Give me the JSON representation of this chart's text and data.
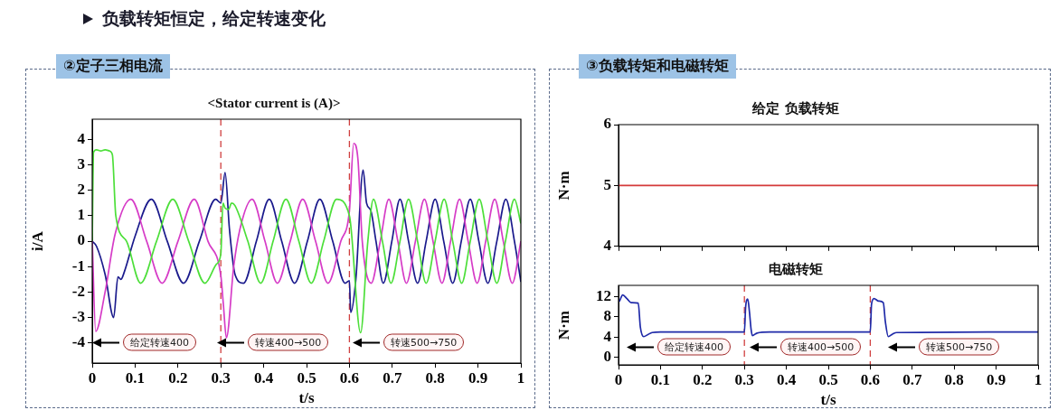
{
  "chart_data": [
    {
      "type": "line",
      "title": "<Stator current is (A)>",
      "xlabel": "t/s",
      "ylabel": "i/A",
      "xlim": [
        0,
        1
      ],
      "ylim": [
        -4.8,
        4.8
      ],
      "xticks": [
        0,
        0.1,
        0.2,
        0.3,
        0.4,
        0.5,
        0.6,
        0.7,
        0.8,
        0.9,
        1
      ],
      "yticks": [
        -4,
        -3,
        -2,
        -1,
        0,
        1,
        2,
        3,
        4
      ],
      "series": [
        {
          "color": "#4ddf3a",
          "x": [
            0,
            0.003,
            0.01,
            0.02,
            0.03,
            0.04,
            0.047,
            0.055,
            0.08,
            0.113,
            0.15,
            0.188,
            0.225,
            0.263,
            0.29,
            0.3,
            0.305,
            0.31,
            0.318,
            0.325,
            0.333,
            0.363,
            0.393,
            0.422,
            0.452,
            0.482,
            0.511,
            0.54,
            0.57,
            0.6,
            0.626,
            0.643,
            0.656,
            0.677,
            0.697,
            0.718,
            0.738,
            0.759,
            0.779,
            0.8,
            0.821,
            0.841,
            0.862,
            0.882,
            0.903,
            0.923,
            0.944,
            0.964,
            0.985,
            1
          ],
          "values": [
            0,
            3.5,
            3.6,
            3.55,
            3.6,
            3.55,
            3.4,
            1.0,
            0,
            -1.65,
            0,
            1.65,
            0,
            -1.65,
            -0.9,
            -0.5,
            1.5,
            1.3,
            1.25,
            1.5,
            1.4,
            0,
            -1.65,
            0,
            1.65,
            0,
            -1.65,
            0,
            1.65,
            1.0,
            -3.6,
            0,
            1.65,
            0,
            -1.65,
            0,
            1.65,
            0,
            -1.65,
            0,
            1.65,
            0,
            -1.65,
            0,
            1.65,
            0,
            -1.65,
            0,
            1.65,
            0.7
          ]
        },
        {
          "color": "#d63cc7",
          "x": [
            0,
            0.008,
            0.03,
            0.053,
            0.09,
            0.127,
            0.163,
            0.2,
            0.238,
            0.27,
            0.3,
            0.306,
            0.313,
            0.33,
            0.345,
            0.373,
            0.403,
            0.432,
            0.462,
            0.491,
            0.521,
            0.55,
            0.58,
            0.6,
            0.61,
            0.62,
            0.63,
            0.651,
            0.672,
            0.692,
            0.713,
            0.733,
            0.754,
            0.775,
            0.795,
            0.816,
            0.836,
            0.857,
            0.877,
            0.898,
            0.918,
            0.939,
            0.959,
            0.98,
            1
          ],
          "values": [
            0,
            -3.55,
            -2.0,
            0.25,
            1.65,
            0,
            -1.65,
            0,
            1.65,
            0,
            -1.35,
            -2.5,
            -3.8,
            -1.0,
            0.5,
            1.65,
            0,
            -1.65,
            0,
            1.65,
            0,
            -1.65,
            0,
            1.2,
            3.85,
            3.2,
            0,
            -1.65,
            0,
            1.65,
            0,
            -1.65,
            0,
            1.65,
            0,
            -1.65,
            0,
            1.65,
            0,
            -1.65,
            0,
            1.65,
            0,
            -1.65,
            0
          ]
        },
        {
          "color": "#1a1a8c",
          "x": [
            0,
            0.01,
            0.03,
            0.05,
            0.06,
            0.067,
            0.075,
            0.1,
            0.138,
            0.175,
            0.213,
            0.25,
            0.288,
            0.3,
            0.31,
            0.32,
            0.333,
            0.353,
            0.383,
            0.413,
            0.442,
            0.472,
            0.502,
            0.531,
            0.561,
            0.59,
            0.6,
            0.603,
            0.615,
            0.632,
            0.64,
            0.65,
            0.662,
            0.679,
            0.699,
            0.718,
            0.738,
            0.759,
            0.779,
            0.8,
            0.82,
            0.841,
            0.861,
            0.882,
            0.902,
            0.923,
            0.944,
            0.965,
            0.985,
            1
          ],
          "values": [
            0,
            -0.2,
            -1.3,
            -3.0,
            -1.4,
            -1.5,
            -1.2,
            0.2,
            1.65,
            0,
            -1.65,
            0,
            1.65,
            1.5,
            2.7,
            0.5,
            -1.3,
            -1.65,
            0,
            1.65,
            0,
            -1.65,
            0,
            1.65,
            0,
            -1.65,
            -1.55,
            -2.8,
            -1.5,
            2.8,
            1.5,
            1.2,
            0,
            -1.65,
            0,
            1.65,
            0,
            -1.65,
            0,
            1.65,
            0,
            -1.65,
            0,
            1.65,
            0,
            -1.65,
            0,
            1.65,
            0,
            -1.6
          ]
        }
      ],
      "ref_lines": [
        {
          "axis": "x",
          "value": 0.3,
          "color": "#d04040",
          "line_style": "dashed"
        },
        {
          "axis": "x",
          "value": 0.6,
          "color": "#d04040",
          "line_style": "dashed"
        }
      ],
      "annotations": [
        "负载转矩恒定，给定转速变化",
        "②定子三相电流",
        "给定转速400",
        "转速400→500",
        "转速500→750"
      ]
    },
    {
      "type": "line",
      "title": "给定 负载转矩",
      "ylabel": "N·m",
      "xlim": [
        0,
        1
      ],
      "ylim": [
        4,
        6
      ],
      "xticks": [
        0,
        0.1,
        0.2,
        0.3,
        0.4,
        0.5,
        0.6,
        0.7,
        0.8,
        0.9,
        1
      ],
      "yticks": [
        4,
        5,
        6
      ],
      "tick_labels": "y",
      "series": [
        {
          "color": "#d43a3a",
          "x": [
            0,
            1
          ],
          "values": [
            5,
            5
          ]
        }
      ],
      "annotations": [
        "③负载转矩和电磁转矩"
      ]
    },
    {
      "type": "line",
      "title": "电磁转矩",
      "xlabel": "t/s",
      "ylabel": "N·m",
      "xlim": [
        0,
        1
      ],
      "ylim": [
        -1.5,
        14.2
      ],
      "xticks": [
        0,
        0.1,
        0.2,
        0.3,
        0.4,
        0.5,
        0.6,
        0.7,
        0.8,
        0.9,
        1
      ],
      "yticks": [
        0,
        4,
        8,
        12
      ],
      "series": [
        {
          "color": "#1f2aa8",
          "x": [
            0.002,
            0.01,
            0.02,
            0.03,
            0.047,
            0.052,
            0.06,
            0.07,
            0.08,
            0.1,
            0.3,
            0.303,
            0.308,
            0.312,
            0.316,
            0.319,
            0.33,
            0.36,
            0.6,
            0.603,
            0.609,
            0.62,
            0.631,
            0.636,
            0.643,
            0.653,
            0.663,
            1
          ],
          "values": [
            11,
            12.3,
            11.6,
            10.8,
            10.7,
            6,
            4.1,
            4.5,
            4.9,
            5,
            5,
            10,
            11.5,
            9,
            5.5,
            4.3,
            4.8,
            5,
            5,
            10.5,
            11.6,
            11.1,
            10.8,
            7,
            4.1,
            4.6,
            4.9,
            5
          ]
        }
      ],
      "ref_lines": [
        {
          "axis": "x",
          "value": 0.3,
          "color": "#d04040",
          "line_style": "dashed"
        },
        {
          "axis": "x",
          "value": 0.6,
          "color": "#d04040",
          "line_style": "dashed"
        }
      ],
      "annotations": [
        "给定转速400",
        "转速400→500",
        "转速500→750"
      ]
    }
  ]
}
